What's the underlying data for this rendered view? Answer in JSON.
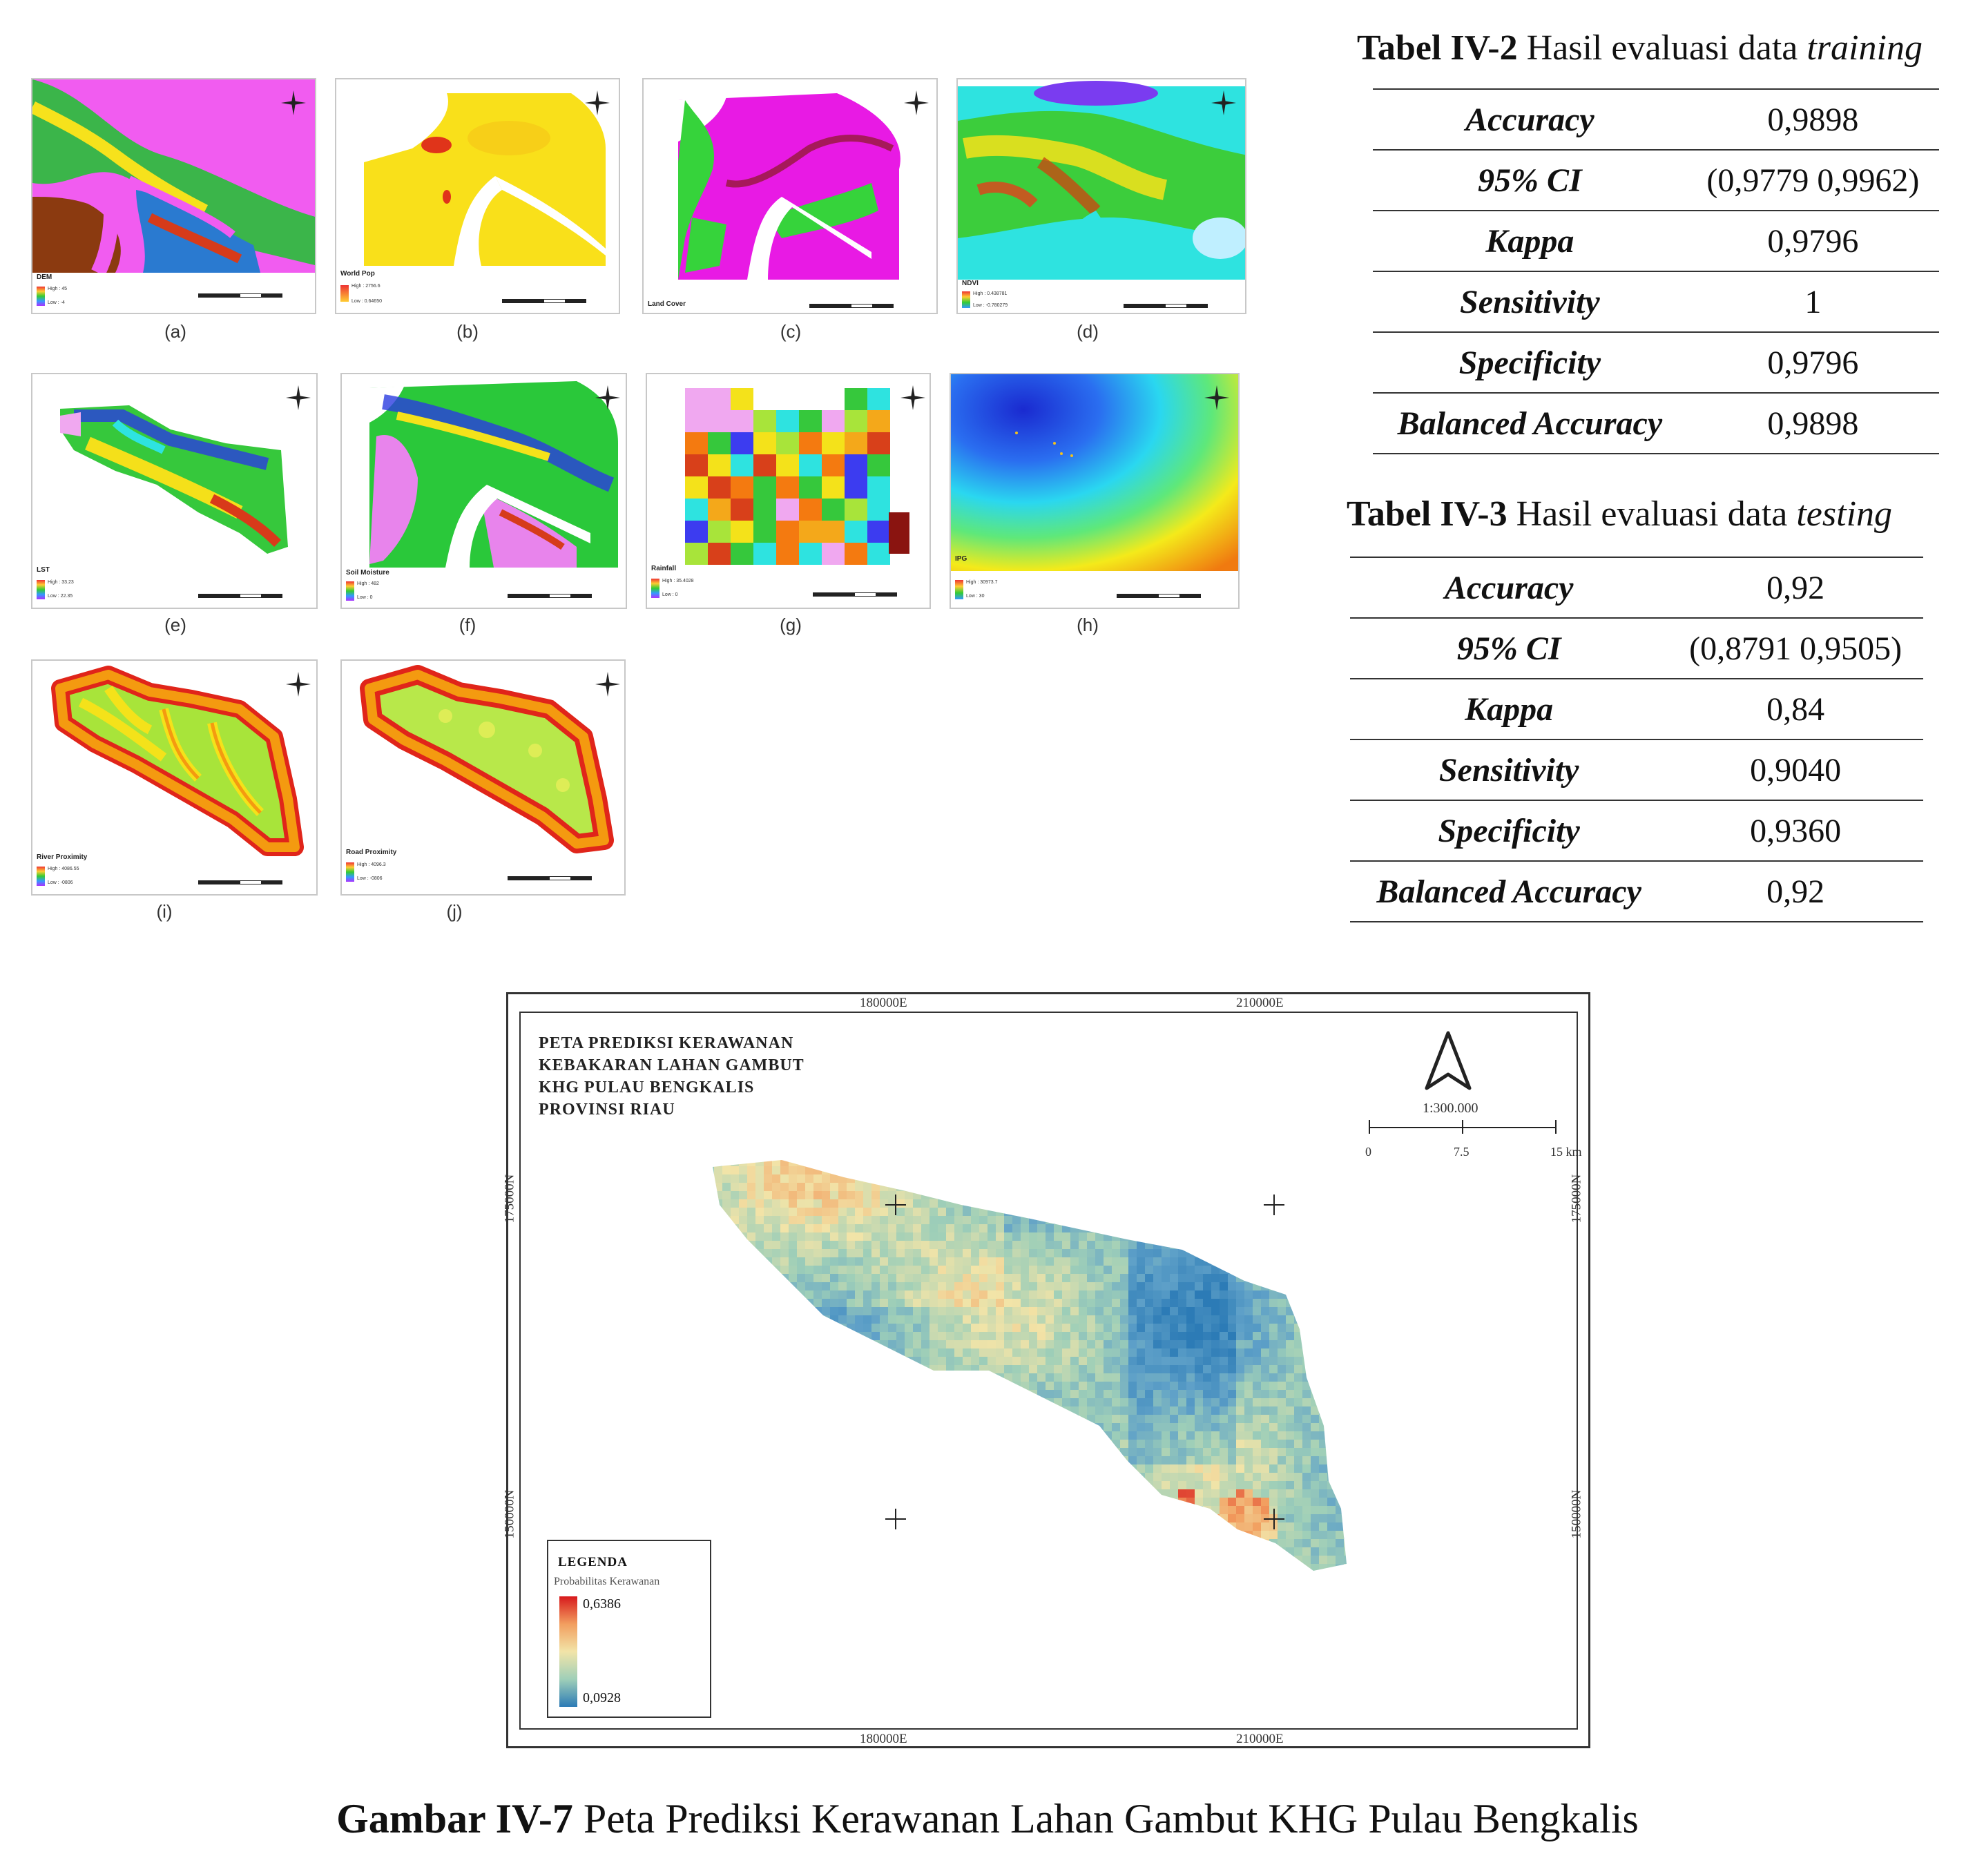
{
  "thumbnails": [
    {
      "letter": "(a)",
      "title": "DEM",
      "legend_high": "High : 45",
      "legend_low": "Low : -4"
    },
    {
      "letter": "(b)",
      "title": "World Pop",
      "legend_high": "High : 2756.6",
      "legend_low": "Low : 0.64650"
    },
    {
      "letter": "(c)",
      "title": "Land Cover",
      "legend_high": "",
      "legend_low": ""
    },
    {
      "letter": "(d)",
      "title": "NDVI",
      "legend_high": "High : 0.438781",
      "legend_low": "Low : -0.780279"
    },
    {
      "letter": "(e)",
      "title": "LST",
      "legend_high": "High : 33.23",
      "legend_low": "Low : 22.35"
    },
    {
      "letter": "(f)",
      "title": "Soil Moisture",
      "legend_high": "High : 482",
      "legend_low": "Low : 0"
    },
    {
      "letter": "(g)",
      "title": "Rainfall",
      "legend_high": "High : 35.4028",
      "legend_low": "Low : 0"
    },
    {
      "letter": "(h)",
      "title": "IPG",
      "legend_high": "High : 30973.7",
      "legend_low": "Low : 30"
    },
    {
      "letter": "(i)",
      "title": "River Proximity",
      "legend_high": "High : 4086.55",
      "legend_low": "Low : -0806"
    },
    {
      "letter": "(j)",
      "title": "Road Proximity",
      "legend_high": "High : 4096.3",
      "legend_low": "Low : -0806"
    }
  ],
  "scalebar_ticks": [
    "0",
    "5",
    "10",
    "20"
  ],
  "scalebar_unit": "Kilometer",
  "table2": {
    "label": "Tabel IV-2",
    "title": "Hasil evaluasi data",
    "title_italic": "training",
    "rows": [
      {
        "k": "Accuracy",
        "v": "0,9898"
      },
      {
        "k": "95% CI",
        "v": "(0,9779 0,9962)"
      },
      {
        "k": "Kappa",
        "v": "0,9796"
      },
      {
        "k": "Sensitivity",
        "v": "1"
      },
      {
        "k": "Specificity",
        "v": "0,9796"
      },
      {
        "k": "Balanced Accuracy",
        "v": "0,9898"
      }
    ]
  },
  "table3": {
    "label": "Tabel IV-3",
    "title": "Hasil evaluasi data",
    "title_italic": "testing",
    "rows": [
      {
        "k": "Accuracy",
        "v": "0,92"
      },
      {
        "k": "95% CI",
        "v": "(0,8791 0,9505)"
      },
      {
        "k": "Kappa",
        "v": "0,84"
      },
      {
        "k": "Sensitivity",
        "v": "0,9040"
      },
      {
        "k": "Specificity",
        "v": "0,9360"
      },
      {
        "k": "Balanced Accuracy",
        "v": "0,92"
      }
    ]
  },
  "map": {
    "title_lines": [
      "PETA PREDIKSI KERAWANAN",
      "KEBAKARAN LAHAN GAMBUT",
      "KHG PULAU BENGKALIS",
      "PROVINSI RIAU"
    ],
    "coord_e1": "180000E",
    "coord_e2": "210000E",
    "coord_n1": "175000N",
    "coord_n2": "150000N",
    "scale": "1:300.000",
    "scale_ticks": [
      "0",
      "7.5",
      "15 km"
    ],
    "legend_title": "LEGENDA",
    "legend_sub": "Probabilitas Kerawanan",
    "legend_high": "0,6386",
    "legend_low": "0,0928"
  },
  "caption": {
    "label": "Gambar IV-7",
    "text": "Peta Prediksi Kerawanan Lahan Gambut KHG Pulau Bengkalis"
  }
}
